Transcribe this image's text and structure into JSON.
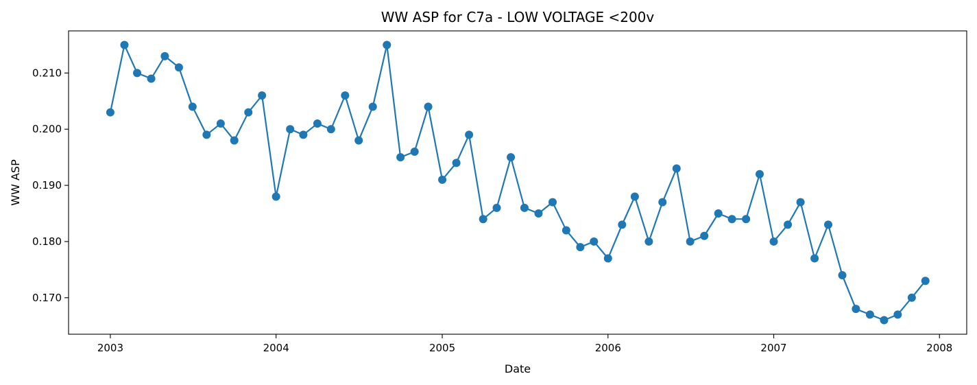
{
  "chart_data": {
    "type": "line",
    "title": "WW ASP for C7a - LOW VOLTAGE <200v",
    "xlabel": "Date",
    "ylabel": "WW ASP",
    "xlim": [
      "2002-10-01",
      "2008-03-01"
    ],
    "ylim": [
      0.1635,
      0.2175
    ],
    "x_ticks": [
      "2003-01-01",
      "2004-01-01",
      "2005-01-01",
      "2006-01-01",
      "2007-01-01",
      "2008-01-01"
    ],
    "x_tick_labels": [
      "2003",
      "2004",
      "2005",
      "2006",
      "2007",
      "2008"
    ],
    "y_ticks": [
      0.17,
      0.18,
      0.19,
      0.2,
      0.21
    ],
    "y_tick_labels": [
      "0.170",
      "0.180",
      "0.190",
      "0.200",
      "0.210"
    ],
    "grid": false,
    "marker": "circle",
    "color": "#1f77b4",
    "series": [
      {
        "x": [
          "2003-01",
          "2003-02",
          "2003-03",
          "2003-04",
          "2003-05",
          "2003-06",
          "2003-07",
          "2003-08",
          "2003-09",
          "2003-10",
          "2003-11",
          "2003-12",
          "2004-01",
          "2004-02",
          "2004-03",
          "2004-04",
          "2004-05",
          "2004-06",
          "2004-07",
          "2004-08",
          "2004-09",
          "2004-10",
          "2004-11",
          "2004-12",
          "2005-01",
          "2005-02",
          "2005-03",
          "2005-04",
          "2005-05",
          "2005-06",
          "2005-07",
          "2005-08",
          "2005-09",
          "2005-10",
          "2005-11",
          "2005-12",
          "2006-01",
          "2006-02",
          "2006-03",
          "2006-04",
          "2006-05",
          "2006-06",
          "2006-07",
          "2006-08",
          "2006-09",
          "2006-10",
          "2006-11",
          "2006-12",
          "2007-01",
          "2007-02",
          "2007-03",
          "2007-04",
          "2007-05",
          "2007-06",
          "2007-07",
          "2007-08",
          "2007-09",
          "2007-10",
          "2007-11",
          "2007-12"
        ],
        "values": [
          0.203,
          0.215,
          0.21,
          0.209,
          0.213,
          0.211,
          0.204,
          0.199,
          0.201,
          0.198,
          0.203,
          0.206,
          0.188,
          0.2,
          0.199,
          0.201,
          0.2,
          0.206,
          0.198,
          0.204,
          0.215,
          0.195,
          0.196,
          0.204,
          0.191,
          0.194,
          0.199,
          0.184,
          0.186,
          0.195,
          0.186,
          0.185,
          0.187,
          0.182,
          0.179,
          0.18,
          0.177,
          0.183,
          0.188,
          0.18,
          0.187,
          0.193,
          0.18,
          0.181,
          0.185,
          0.184,
          0.184,
          0.192,
          0.18,
          0.183,
          0.187,
          0.177,
          0.183,
          0.174,
          0.168,
          0.167,
          0.166,
          0.167,
          0.17,
          0.173
        ]
      }
    ]
  }
}
